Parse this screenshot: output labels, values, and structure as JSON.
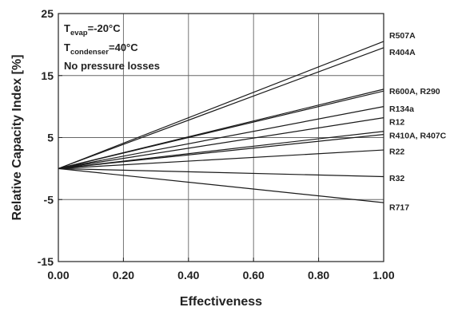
{
  "chart_data": {
    "type": "line",
    "title": "",
    "xlabel": "Effectiveness",
    "ylabel": "Relative Capacity Index [%]",
    "xlim": [
      0,
      1
    ],
    "ylim": [
      -15,
      25
    ],
    "x_ticks": [
      0,
      0.2,
      0.4,
      0.6,
      0.8,
      1.0
    ],
    "x_tick_labels": [
      "0.00",
      "0.20",
      "0.40",
      "0.60",
      "0.80",
      "1.00"
    ],
    "y_ticks": [
      -15,
      -5,
      5,
      15,
      25
    ],
    "y_tick_labels": [
      "-15",
      "-5",
      "5",
      "15",
      "25"
    ],
    "grid": true,
    "legend": "labels at line ends (right)",
    "annotations": {
      "line1_main": "T",
      "line1_sub": "evap",
      "line1_rest": "=-20°C",
      "line2_main": "T",
      "line2_sub": "condenser",
      "line2_rest": "=40°C",
      "line3": "No pressure losses"
    },
    "x": [
      0,
      1
    ],
    "series": [
      {
        "name": "R507A",
        "values": [
          0,
          20.5
        ]
      },
      {
        "name": "R404A",
        "values": [
          0,
          19.5
        ]
      },
      {
        "name": "R600A, R290",
        "values": [
          0,
          12.8
        ]
      },
      {
        "name": "",
        "values": [
          0,
          12.5
        ]
      },
      {
        "name": "R134a",
        "values": [
          0,
          10.0
        ]
      },
      {
        "name": "R12",
        "values": [
          0,
          8.2
        ]
      },
      {
        "name": "R410A, R407C",
        "values": [
          0,
          6.0
        ]
      },
      {
        "name": "",
        "values": [
          0,
          5.5
        ]
      },
      {
        "name": "R22",
        "values": [
          0,
          3.0
        ]
      },
      {
        "name": "R32",
        "values": [
          0,
          -1.3
        ]
      },
      {
        "name": "R717",
        "values": [
          0,
          -5.5
        ]
      }
    ],
    "label_positions_y": {
      "R507A": 21.5,
      "R404A": 18.8,
      "R600A, R290": 12.5,
      "R134a": 9.7,
      "R12": 7.6,
      "R410A, R407C": 5.4,
      "R22": 2.8,
      "R32": -1.5,
      "R717": -6.2
    }
  }
}
